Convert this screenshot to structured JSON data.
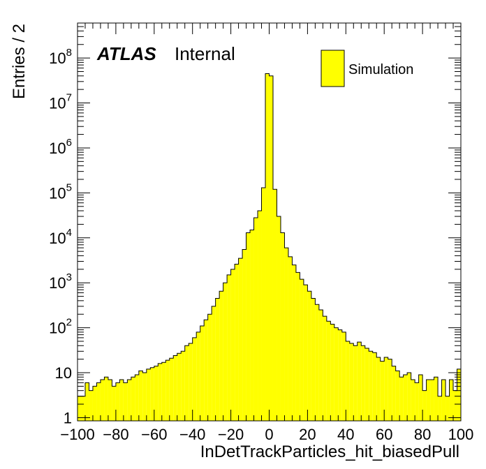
{
  "chart_data": {
    "type": "bar",
    "histogram": true,
    "xlabel": "InDetTrackParticles_hit_biasedPull",
    "ylabel": "Entries / 2",
    "xlim": [
      -100,
      100
    ],
    "ylim": [
      0.85,
      600000000.0
    ],
    "yscale": "log",
    "bin_width": 2,
    "x_ticks": [
      -100,
      -80,
      -60,
      -40,
      -20,
      0,
      20,
      40,
      60,
      80,
      100
    ],
    "x_tick_labels": [
      "−100",
      "−80",
      "−60",
      "−40",
      "−20",
      "0",
      "20",
      "40",
      "60",
      "80",
      "100"
    ],
    "y_ticks": [
      {
        "value": 1,
        "base": "1",
        "exp": ""
      },
      {
        "value": 10,
        "base": "10",
        "exp": ""
      },
      {
        "value": 100,
        "base": "10",
        "exp": "2"
      },
      {
        "value": 1000,
        "base": "10",
        "exp": "3"
      },
      {
        "value": 10000,
        "base": "10",
        "exp": "4"
      },
      {
        "value": 100000,
        "base": "10",
        "exp": "5"
      },
      {
        "value": 1000000,
        "base": "10",
        "exp": "6"
      },
      {
        "value": 10000000,
        "base": "10",
        "exp": "7"
      },
      {
        "value": 100000000,
        "base": "10",
        "exp": "8"
      }
    ],
    "bin_lows": [
      -100,
      -98,
      -96,
      -94,
      -92,
      -90,
      -88,
      -86,
      -84,
      -82,
      -80,
      -78,
      -76,
      -74,
      -72,
      -70,
      -68,
      -66,
      -64,
      -62,
      -60,
      -58,
      -56,
      -54,
      -52,
      -50,
      -48,
      -46,
      -44,
      -42,
      -40,
      -38,
      -36,
      -34,
      -32,
      -30,
      -28,
      -26,
      -24,
      -22,
      -20,
      -18,
      -16,
      -14,
      -12,
      -10,
      -8,
      -6,
      -4,
      -2,
      0,
      2,
      4,
      6,
      8,
      10,
      12,
      14,
      16,
      18,
      20,
      22,
      24,
      26,
      28,
      30,
      32,
      34,
      36,
      38,
      40,
      42,
      44,
      46,
      48,
      50,
      52,
      54,
      56,
      58,
      60,
      62,
      64,
      66,
      68,
      70,
      72,
      74,
      76,
      78,
      80,
      82,
      84,
      86,
      88,
      90,
      92,
      94,
      96,
      98
    ],
    "values": [
      3,
      3,
      6,
      4,
      5,
      6,
      7,
      8,
      7,
      5,
      6,
      7,
      6,
      7,
      8,
      9,
      11,
      10,
      12,
      13,
      14,
      16,
      17,
      19,
      21,
      24,
      27,
      30,
      40,
      45,
      60,
      80,
      110,
      150,
      200,
      300,
      450,
      650,
      1000,
      1500,
      2000,
      2600,
      3500,
      5500,
      13000,
      15000,
      28000,
      40000,
      130000,
      45000000,
      40000000,
      120000,
      30000,
      13000,
      6000,
      3800,
      2500,
      1700,
      1200,
      900,
      650,
      450,
      330,
      250,
      180,
      140,
      120,
      100,
      90,
      80,
      50,
      45,
      40,
      48,
      40,
      35,
      30,
      28,
      22,
      18,
      22,
      20,
      14,
      11,
      8,
      9,
      10,
      7,
      6,
      9,
      4,
      7,
      7,
      8,
      3,
      7,
      3,
      7,
      4,
      12
    ],
    "series_name": "Simulation",
    "fill_color": "#ffff00",
    "line_color": "#000000"
  },
  "annotation": {
    "atlas": "ATLAS",
    "status": "Internal"
  },
  "legend": {
    "placement": "top-right",
    "label": "Simulation"
  }
}
